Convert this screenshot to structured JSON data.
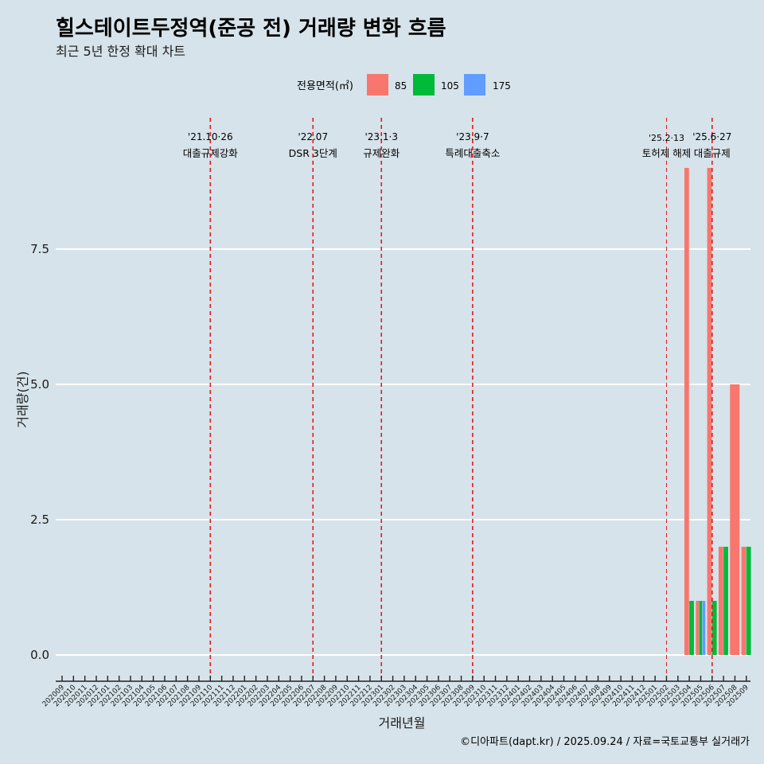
{
  "title": "힐스테이트두정역(준공 전) 거래량 변화 흐름",
  "subtitle": "최근 5년 한정 확대 차트",
  "caption": "©디아파트(dapt.kr) / 2025.09.24 / 자료=국토교통부 실거래가",
  "colors": {
    "background": "#d6e3ea",
    "series_85": "#f8766d",
    "series_105": "#00ba38",
    "series_175": "#619cff",
    "event_line": "#e41a1c",
    "grid": "#ffffff"
  },
  "chart_data": {
    "type": "bar",
    "title": "힐스테이트두정역(준공 전) 거래량 변화 흐름",
    "subtitle": "최근 5년 한정 확대 차트",
    "xlabel": "거래년월",
    "ylabel": "거래량(건)",
    "ylim": [
      0,
      9.5
    ],
    "yticks": [
      0.0,
      2.5,
      5.0,
      7.5
    ],
    "ytick_labels": [
      "0.0",
      "2.5",
      "5.0",
      "7.5"
    ],
    "grid": true,
    "legend_title": "전용면적(㎡)",
    "legend_position": "top",
    "categories": [
      "202009",
      "202010",
      "202011",
      "202012",
      "202101",
      "202102",
      "202103",
      "202104",
      "202105",
      "202106",
      "202107",
      "202108",
      "202109",
      "202110",
      "202111",
      "202112",
      "202201",
      "202202",
      "202203",
      "202204",
      "202205",
      "202206",
      "202207",
      "202208",
      "202209",
      "202210",
      "202211",
      "202212",
      "202301",
      "202302",
      "202303",
      "202304",
      "202305",
      "202306",
      "202307",
      "202308",
      "202309",
      "202310",
      "202311",
      "202312",
      "202401",
      "202402",
      "202403",
      "202404",
      "202405",
      "202406",
      "202407",
      "202408",
      "202409",
      "202410",
      "202411",
      "202412",
      "202501",
      "202502",
      "202503",
      "202504",
      "202505",
      "202506",
      "202507",
      "202508",
      "202509"
    ],
    "series": [
      {
        "name": "85",
        "values": {
          "202504": 9,
          "202505": 1,
          "202506": 9,
          "202507": 2,
          "202508": 5,
          "202509": 2
        }
      },
      {
        "name": "105",
        "values": {
          "202504": 1,
          "202505": 1,
          "202506": 1,
          "202507": 2,
          "202509": 2
        }
      },
      {
        "name": "175",
        "values": {
          "202505": 1
        }
      }
    ],
    "events": [
      {
        "category": "202110",
        "date": "'21.10·26",
        "label": "대출규제강화",
        "style": "normal"
      },
      {
        "category": "202207",
        "date": "'22.07",
        "label": "DSR 3단계",
        "style": "normal"
      },
      {
        "category": "202301",
        "date": "'23.1·3",
        "label": "규제완화",
        "style": "normal"
      },
      {
        "category": "202309",
        "date": "'23.9·7",
        "label": "특례대출축소",
        "style": "normal"
      },
      {
        "category": "202502",
        "date": "'25.2·13",
        "label": "토허제 해제",
        "style": "thin"
      },
      {
        "category": "202506",
        "date": "'25.6·27",
        "label": "대출규제",
        "style": "normal"
      }
    ]
  }
}
